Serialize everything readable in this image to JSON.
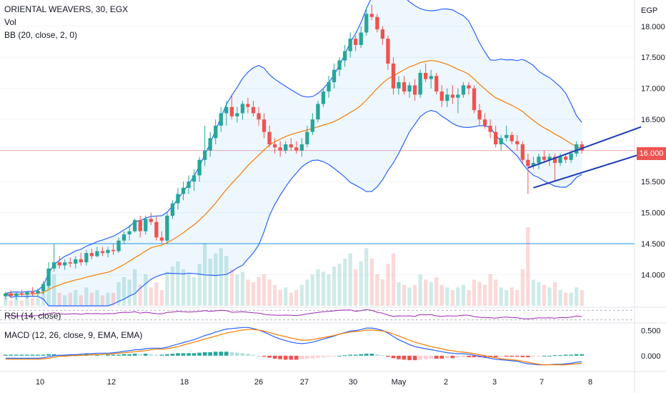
{
  "legend": {
    "main": "ORIENTAL WEAVERS, 30, EGX",
    "vol": "Vol",
    "bb": "BB (20, close, 2, 0)",
    "rsi": "RSI (14, close)",
    "macd": "MACD (12, 26, close, 9, EMA, EMA)"
  },
  "price_axis": {
    "currency": "EGP",
    "current_price": "16.000",
    "ticks": [
      "18.000",
      "17.500",
      "17.000",
      "16.500",
      "16.000",
      "15.500",
      "15.000",
      "14.500",
      "14.000"
    ]
  },
  "macd_axis": {
    "ticks": [
      "0.500",
      "0.000"
    ]
  },
  "time_axis": {
    "labels": [
      "10",
      "12",
      "18",
      "26",
      "27",
      "30",
      "May",
      "2",
      "3",
      "7",
      "8"
    ]
  },
  "colors": {
    "up": "#26a69a",
    "down": "#ef5350",
    "bb_band": "#2962ff",
    "bb_basis": "#f57c00",
    "rsi": "#9c27b0",
    "macd": "#2962ff",
    "signal": "#f57c00",
    "horizontal_line": "#2196f3",
    "trend_channel": "#1e3bb3"
  },
  "chart_data": {
    "type": "candlestick",
    "symbol": "ORIENTAL WEAVERS",
    "interval": "30",
    "exchange": "EGX",
    "ylim": [
      13.5,
      18.4
    ],
    "horizontal_line": 14.5,
    "current_price": 16.0,
    "candles": [
      [
        13.65,
        13.72,
        13.6,
        13.7
      ],
      [
        13.7,
        13.75,
        13.62,
        13.66
      ],
      [
        13.66,
        13.72,
        13.6,
        13.7
      ],
      [
        13.7,
        13.76,
        13.64,
        13.68
      ],
      [
        13.68,
        13.74,
        13.62,
        13.72
      ],
      [
        13.72,
        13.8,
        13.66,
        13.7
      ],
      [
        13.7,
        13.78,
        13.64,
        13.74
      ],
      [
        13.74,
        13.9,
        13.68,
        13.85
      ],
      [
        13.82,
        14.2,
        13.78,
        14.1
      ],
      [
        14.1,
        14.5,
        14.05,
        14.2
      ],
      [
        14.2,
        14.3,
        14.1,
        14.15
      ],
      [
        14.15,
        14.25,
        14.08,
        14.2
      ],
      [
        14.2,
        14.28,
        14.12,
        14.18
      ],
      [
        14.18,
        14.3,
        14.1,
        14.25
      ],
      [
        14.25,
        14.35,
        14.15,
        14.2
      ],
      [
        14.2,
        14.4,
        14.15,
        14.35
      ],
      [
        14.35,
        14.42,
        14.25,
        14.3
      ],
      [
        14.3,
        14.45,
        14.28,
        14.38
      ],
      [
        14.38,
        14.45,
        14.3,
        14.35
      ],
      [
        14.35,
        14.45,
        14.28,
        14.4
      ],
      [
        14.4,
        14.5,
        14.32,
        14.38
      ],
      [
        14.38,
        14.6,
        14.35,
        14.55
      ],
      [
        14.55,
        14.7,
        14.5,
        14.65
      ],
      [
        14.65,
        14.8,
        14.55,
        14.7
      ],
      [
        14.7,
        14.9,
        14.68,
        14.88
      ],
      [
        14.88,
        14.95,
        14.6,
        14.7
      ],
      [
        14.7,
        14.95,
        14.65,
        14.9
      ],
      [
        14.9,
        15.0,
        14.8,
        14.85
      ],
      [
        14.85,
        14.95,
        14.55,
        14.6
      ],
      [
        14.6,
        14.7,
        14.5,
        14.55
      ],
      [
        14.55,
        15.0,
        14.5,
        14.95
      ],
      [
        14.95,
        15.2,
        14.9,
        15.15
      ],
      [
        15.15,
        15.4,
        15.05,
        15.3
      ],
      [
        15.3,
        15.5,
        15.2,
        15.4
      ],
      [
        15.4,
        15.6,
        15.3,
        15.5
      ],
      [
        15.5,
        15.7,
        15.35,
        15.6
      ],
      [
        15.6,
        15.9,
        15.5,
        15.85
      ],
      [
        15.85,
        16.4,
        15.75,
        16.0
      ],
      [
        16.0,
        16.3,
        15.9,
        16.2
      ],
      [
        16.2,
        16.5,
        16.1,
        16.4
      ],
      [
        16.4,
        16.7,
        16.3,
        16.6
      ],
      [
        16.6,
        16.8,
        16.4,
        16.7
      ],
      [
        16.7,
        16.9,
        16.5,
        16.55
      ],
      [
        16.55,
        16.7,
        16.45,
        16.6
      ],
      [
        16.6,
        16.8,
        16.5,
        16.75
      ],
      [
        16.75,
        16.85,
        16.6,
        16.7
      ],
      [
        16.7,
        16.8,
        16.55,
        16.6
      ],
      [
        16.6,
        16.7,
        16.4,
        16.5
      ],
      [
        16.5,
        16.6,
        16.2,
        16.3
      ],
      [
        16.3,
        16.4,
        16.05,
        16.1
      ],
      [
        16.1,
        16.2,
        15.95,
        16.05
      ],
      [
        16.05,
        16.15,
        15.9,
        16.0
      ],
      [
        16.0,
        16.15,
        15.95,
        16.1
      ],
      [
        16.1,
        16.2,
        16.0,
        16.05
      ],
      [
        16.05,
        16.15,
        15.95,
        16.0
      ],
      [
        16.0,
        16.2,
        15.9,
        16.1
      ],
      [
        16.1,
        16.4,
        16.05,
        16.3
      ],
      [
        16.3,
        16.6,
        16.25,
        16.5
      ],
      [
        16.5,
        16.8,
        16.45,
        16.75
      ],
      [
        16.75,
        17.0,
        16.7,
        16.95
      ],
      [
        16.95,
        17.2,
        16.85,
        17.1
      ],
      [
        17.1,
        17.4,
        17.0,
        17.3
      ],
      [
        17.3,
        17.5,
        17.2,
        17.45
      ],
      [
        17.45,
        17.7,
        17.35,
        17.6
      ],
      [
        17.6,
        17.9,
        17.5,
        17.8
      ],
      [
        17.8,
        17.85,
        17.6,
        17.7
      ],
      [
        17.7,
        18.0,
        17.65,
        17.9
      ],
      [
        17.9,
        18.3,
        17.85,
        18.2
      ],
      [
        18.2,
        18.35,
        18.1,
        18.15
      ],
      [
        18.15,
        18.2,
        17.9,
        17.95
      ],
      [
        17.95,
        18.0,
        17.7,
        17.8
      ],
      [
        17.8,
        17.85,
        17.3,
        17.4
      ],
      [
        17.4,
        17.5,
        16.9,
        17.0
      ],
      [
        17.0,
        17.2,
        16.9,
        17.1
      ],
      [
        17.1,
        17.2,
        16.9,
        16.95
      ],
      [
        16.95,
        17.1,
        16.85,
        17.05
      ],
      [
        17.05,
        17.15,
        16.8,
        16.9
      ],
      [
        16.9,
        17.3,
        16.85,
        17.25
      ],
      [
        17.25,
        17.4,
        17.1,
        17.15
      ],
      [
        17.15,
        17.3,
        17.0,
        17.2
      ],
      [
        17.2,
        17.25,
        16.9,
        16.95
      ],
      [
        16.95,
        17.05,
        16.7,
        16.8
      ],
      [
        16.8,
        17.0,
        16.7,
        16.9
      ],
      [
        16.9,
        17.05,
        16.75,
        16.85
      ],
      [
        16.85,
        17.0,
        16.6,
        16.9
      ],
      [
        16.9,
        17.1,
        16.85,
        17.05
      ],
      [
        17.05,
        17.1,
        16.9,
        17.0
      ],
      [
        17.0,
        17.05,
        16.6,
        16.65
      ],
      [
        16.65,
        16.75,
        16.4,
        16.5
      ],
      [
        16.5,
        16.6,
        16.35,
        16.4
      ],
      [
        16.4,
        16.5,
        16.2,
        16.3
      ],
      [
        16.3,
        16.4,
        16.05,
        16.1
      ],
      [
        16.1,
        16.25,
        16.0,
        16.2
      ],
      [
        16.2,
        16.4,
        16.15,
        16.25
      ],
      [
        16.25,
        16.3,
        16.1,
        16.15
      ],
      [
        16.15,
        16.25,
        16.0,
        16.1
      ],
      [
        16.1,
        16.15,
        15.8,
        15.85
      ],
      [
        15.85,
        15.95,
        15.3,
        15.75
      ],
      [
        15.75,
        15.9,
        15.7,
        15.8
      ],
      [
        15.8,
        15.95,
        15.7,
        15.9
      ],
      [
        15.9,
        16.0,
        15.8,
        15.85
      ],
      [
        15.85,
        15.95,
        15.75,
        15.9
      ],
      [
        15.9,
        15.95,
        15.5,
        15.8
      ],
      [
        15.8,
        15.95,
        15.75,
        15.9
      ],
      [
        15.9,
        15.95,
        15.8,
        15.85
      ],
      [
        15.85,
        16.0,
        15.8,
        15.95
      ],
      [
        15.95,
        16.15,
        15.9,
        16.1
      ],
      [
        16.1,
        16.15,
        15.95,
        16.0
      ]
    ],
    "volume": [
      3,
      2,
      3,
      2,
      4,
      3,
      3,
      6,
      10,
      12,
      5,
      4,
      5,
      6,
      4,
      7,
      5,
      6,
      4,
      5,
      5,
      9,
      11,
      10,
      14,
      8,
      12,
      7,
      9,
      6,
      13,
      15,
      17,
      14,
      12,
      11,
      16,
      24,
      18,
      20,
      22,
      19,
      14,
      12,
      13,
      10,
      9,
      11,
      12,
      10,
      8,
      6,
      7,
      5,
      6,
      8,
      10,
      12,
      14,
      13,
      12,
      15,
      16,
      18,
      20,
      14,
      17,
      22,
      18,
      12,
      10,
      16,
      20,
      9,
      8,
      7,
      8,
      12,
      10,
      9,
      11,
      8,
      7,
      6,
      7,
      8,
      6,
      10,
      9,
      8,
      12,
      10,
      7,
      6,
      7,
      6,
      14,
      30,
      10,
      9,
      8,
      7,
      9,
      6,
      5,
      5,
      7,
      6
    ],
    "rsi": [
      47,
      48,
      46,
      47,
      48,
      47,
      48,
      52,
      57,
      60,
      55,
      54,
      55,
      56,
      54,
      57,
      56,
      57,
      55,
      57,
      56,
      60,
      62,
      61,
      64,
      58,
      62,
      59,
      56,
      55,
      61,
      63,
      66,
      64,
      63,
      64,
      66,
      69,
      66,
      68,
      70,
      69,
      62,
      63,
      64,
      62,
      60,
      58,
      54,
      51,
      50,
      49,
      50,
      49,
      48,
      51,
      55,
      58,
      61,
      64,
      66,
      68,
      70,
      71,
      72,
      66,
      69,
      73,
      70,
      62,
      58,
      50,
      45,
      47,
      46,
      47,
      45,
      52,
      51,
      52,
      47,
      45,
      47,
      46,
      47,
      50,
      49,
      44,
      41,
      40,
      39,
      37,
      40,
      42,
      40,
      39,
      35,
      34,
      36,
      39,
      38,
      39,
      37,
      40,
      39,
      42,
      46,
      44
    ],
    "macd_hist": [
      0.02,
      0.02,
      0.02,
      0.02,
      0.02,
      0.02,
      0.02,
      0.02,
      0.03,
      0.03,
      0.02,
      0.02,
      0.02,
      0.02,
      0.02,
      0.03,
      0.02,
      0.03,
      0.02,
      0.02,
      0.02,
      0.02,
      0.03,
      0.03,
      0.04,
      0.03,
      0.04,
      0.03,
      0.02,
      0.02,
      0.03,
      0.04,
      0.05,
      0.05,
      0.05,
      0.05,
      0.06,
      0.07,
      0.07,
      0.08,
      0.08,
      0.08,
      0.07,
      0.06,
      0.05,
      0.04,
      0.02,
      0.0,
      -0.02,
      -0.04,
      -0.06,
      -0.07,
      -0.08,
      -0.08,
      -0.08,
      -0.07,
      -0.06,
      -0.05,
      -0.04,
      -0.03,
      -0.02,
      -0.01,
      0.0,
      0.01,
      0.02,
      0.02,
      0.03,
      0.04,
      0.04,
      0.03,
      0.01,
      -0.02,
      -0.05,
      -0.07,
      -0.08,
      -0.09,
      -0.09,
      -0.08,
      -0.07,
      -0.06,
      -0.06,
      -0.06,
      -0.05,
      -0.05,
      -0.04,
      -0.03,
      -0.03,
      -0.03,
      -0.03,
      -0.03,
      -0.03,
      -0.03,
      -0.02,
      -0.02,
      -0.02,
      -0.02,
      -0.03,
      -0.03,
      -0.02,
      -0.01,
      0.0,
      0.0,
      0.01,
      0.01,
      0.02,
      0.02,
      0.03,
      0.03
    ],
    "macd_line": [
      -0.05,
      -0.05,
      -0.05,
      -0.05,
      -0.05,
      -0.05,
      -0.05,
      -0.04,
      -0.02,
      0.0,
      0.01,
      0.01,
      0.02,
      0.02,
      0.03,
      0.04,
      0.04,
      0.05,
      0.05,
      0.05,
      0.06,
      0.07,
      0.09,
      0.1,
      0.12,
      0.12,
      0.14,
      0.15,
      0.15,
      0.15,
      0.17,
      0.2,
      0.23,
      0.26,
      0.29,
      0.32,
      0.36,
      0.4,
      0.43,
      0.47,
      0.5,
      0.53,
      0.54,
      0.55,
      0.56,
      0.56,
      0.54,
      0.51,
      0.47,
      0.42,
      0.37,
      0.33,
      0.3,
      0.27,
      0.25,
      0.24,
      0.25,
      0.27,
      0.3,
      0.33,
      0.36,
      0.39,
      0.43,
      0.46,
      0.49,
      0.5,
      0.52,
      0.55,
      0.55,
      0.53,
      0.5,
      0.45,
      0.38,
      0.32,
      0.27,
      0.22,
      0.18,
      0.16,
      0.14,
      0.12,
      0.1,
      0.08,
      0.06,
      0.05,
      0.04,
      0.04,
      0.03,
      0.01,
      -0.01,
      -0.03,
      -0.05,
      -0.07,
      -0.08,
      -0.09,
      -0.1,
      -0.11,
      -0.14,
      -0.16,
      -0.17,
      -0.18,
      -0.18,
      -0.18,
      -0.17,
      -0.17,
      -0.16,
      -0.15,
      -0.13,
      -0.12
    ],
    "trend_channel": {
      "upper": [
        [
          97,
          15.72
        ],
        [
          118,
          16.38
        ]
      ],
      "lower": [
        [
          98,
          15.4
        ],
        [
          119,
          15.97
        ]
      ]
    }
  }
}
